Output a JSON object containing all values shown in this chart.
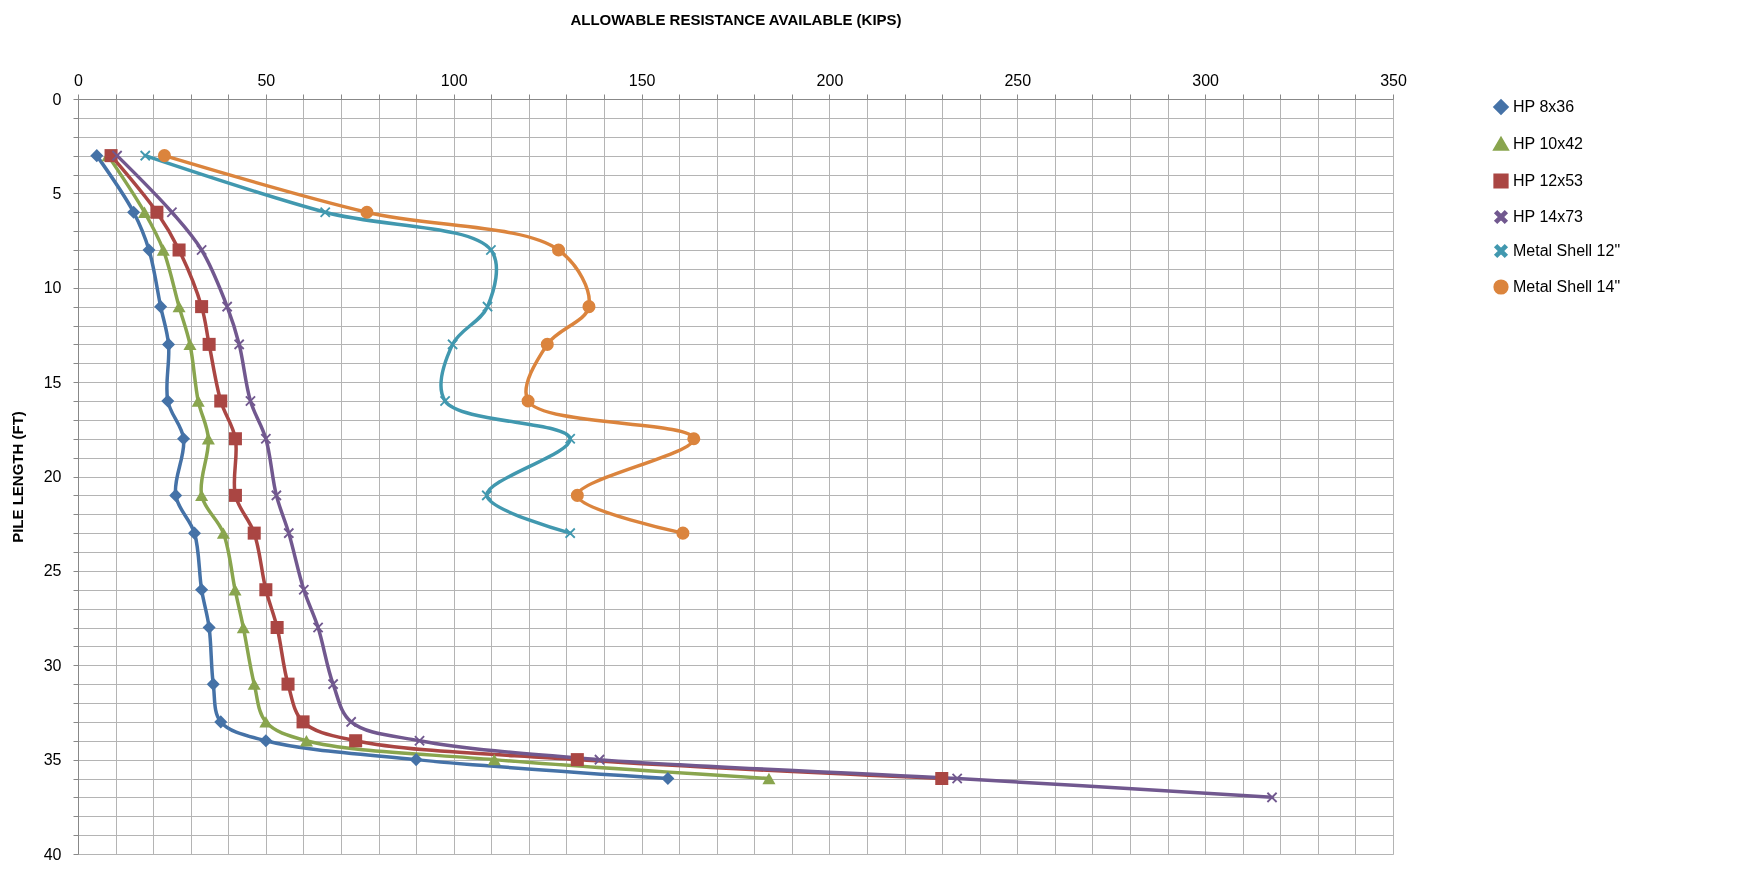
{
  "chart_data": {
    "type": "line",
    "xlabel": "ALLOWABLE RESISTANCE AVAILABLE (KIPS)",
    "ylabel": "PILE LENGTH (FT)",
    "xlim": [
      0,
      350
    ],
    "ylim": [
      40,
      0
    ],
    "xticks": [
      0,
      {
        "value": 10,
        "label": null
      },
      {
        "value": 20,
        "label": null
      },
      {
        "value": 30,
        "label": null
      },
      {
        "value": 40,
        "label": null
      },
      50,
      {
        "value": 60,
        "label": null
      },
      {
        "value": 70,
        "label": null
      },
      {
        "value": 80,
        "label": null
      },
      {
        "value": 90,
        "label": null
      },
      100,
      {
        "value": 110,
        "label": null
      },
      {
        "value": 120,
        "label": null
      },
      {
        "value": 130,
        "label": null
      },
      {
        "value": 140,
        "label": null
      },
      150,
      {
        "value": 160,
        "label": null
      },
      {
        "value": 170,
        "label": null
      },
      {
        "value": 180,
        "label": null
      },
      {
        "value": 190,
        "label": null
      },
      200,
      {
        "value": 210,
        "label": null
      },
      {
        "value": 220,
        "label": null
      },
      {
        "value": 230,
        "label": null
      },
      {
        "value": 240,
        "label": null
      },
      250,
      {
        "value": 260,
        "label": null
      },
      {
        "value": 270,
        "label": null
      },
      {
        "value": 280,
        "label": null
      },
      {
        "value": 290,
        "label": null
      },
      300,
      {
        "value": 310,
        "label": null
      },
      {
        "value": 320,
        "label": null
      },
      {
        "value": 330,
        "label": null
      },
      {
        "value": 340,
        "label": null
      },
      350
    ],
    "yticks": [
      0,
      {
        "value": 1,
        "label": null
      },
      {
        "value": 2,
        "label": null
      },
      {
        "value": 3,
        "label": null
      },
      {
        "value": 4,
        "label": null
      },
      5,
      {
        "value": 6,
        "label": null
      },
      {
        "value": 7,
        "label": null
      },
      {
        "value": 8,
        "label": null
      },
      {
        "value": 9,
        "label": null
      },
      10,
      {
        "value": 11,
        "label": null
      },
      {
        "value": 12,
        "label": null
      },
      {
        "value": 13,
        "label": null
      },
      {
        "value": 14,
        "label": null
      },
      15,
      {
        "value": 16,
        "label": null
      },
      {
        "value": 17,
        "label": null
      },
      {
        "value": 18,
        "label": null
      },
      {
        "value": 19,
        "label": null
      },
      20,
      {
        "value": 21,
        "label": null
      },
      {
        "value": 22,
        "label": null
      },
      {
        "value": 23,
        "label": null
      },
      {
        "value": 24,
        "label": null
      },
      25,
      {
        "value": 26,
        "label": null
      },
      {
        "value": 27,
        "label": null
      },
      {
        "value": 28,
        "label": null
      },
      {
        "value": 29,
        "label": null
      },
      30,
      {
        "value": 31,
        "label": null
      },
      {
        "value": 32,
        "label": null
      },
      {
        "value": 33,
        "label": null
      },
      {
        "value": 34,
        "label": null
      },
      35,
      {
        "value": 36,
        "label": null
      },
      {
        "value": 37,
        "label": null
      },
      {
        "value": 38,
        "label": null
      },
      {
        "value": 39,
        "label": null
      },
      40
    ],
    "grid": true,
    "legend": "right",
    "line_style": "solid",
    "series": [
      {
        "name": "HP 8x36",
        "color": "#4572a7",
        "marker": "diamond",
        "x": [
          5,
          14.8,
          18.9,
          22,
          24.1,
          23.9,
          28.1,
          26,
          31,
          32.9,
          34.9,
          36,
          38,
          50,
          90,
          157
        ],
        "values": [
          3,
          6,
          8,
          11,
          13,
          16,
          18,
          21,
          23,
          26,
          28,
          31,
          33,
          34,
          35,
          36
        ]
      },
      {
        "name": "HP 10x42",
        "color": "#89a54e",
        "marker": "triangle",
        "x": [
          8,
          17.7,
          22.7,
          26.9,
          29.8,
          32,
          34.7,
          32.9,
          38.7,
          41.8,
          44,
          46.9,
          50,
          60.8,
          110.8,
          183.9
        ],
        "values": [
          3,
          6,
          8,
          11,
          13,
          16,
          18,
          21,
          23,
          26,
          28,
          31,
          33,
          34,
          35,
          36
        ]
      },
      {
        "name": "HP 12x53",
        "color": "#aa4643",
        "marker": "square",
        "x": [
          8.8,
          21,
          26.9,
          32.9,
          34.9,
          38,
          41.9,
          41.9,
          46.9,
          50,
          53,
          55.9,
          59.9,
          73.9,
          132.9,
          229.9
        ],
        "values": [
          3,
          6,
          8,
          11,
          13,
          16,
          18,
          21,
          23,
          26,
          28,
          31,
          33,
          34,
          35,
          36
        ]
      },
      {
        "name": "HP 14x73",
        "color": "#71588f",
        "marker": "cross",
        "x": [
          10.4,
          25,
          32.9,
          39.7,
          42.9,
          45.9,
          50,
          52.8,
          56.1,
          60.1,
          63.9,
          67.9,
          72.7,
          90.9,
          138.8,
          234,
          317.8
        ],
        "values": [
          3,
          6,
          8,
          11,
          13,
          16,
          18,
          21,
          23,
          26,
          28,
          31,
          33,
          34,
          35,
          36,
          37
        ]
      },
      {
        "name": "Metal Shell 12\"",
        "color": "#4198af",
        "marker": "cross",
        "x": [
          17.9,
          65.8,
          109.9,
          109,
          99.7,
          97.7,
          131,
          108.8,
          131
        ],
        "values": [
          3,
          6,
          8,
          11,
          13,
          16,
          18,
          21,
          23
        ]
      },
      {
        "name": "Metal Shell 14\"",
        "color": "#db843d",
        "marker": "circle",
        "x": [
          23,
          76.9,
          127.9,
          136,
          124.9,
          119.8,
          163.9,
          132.9,
          161
        ],
        "values": [
          3,
          6,
          8,
          11,
          13,
          16,
          18,
          21,
          23
        ]
      }
    ]
  }
}
